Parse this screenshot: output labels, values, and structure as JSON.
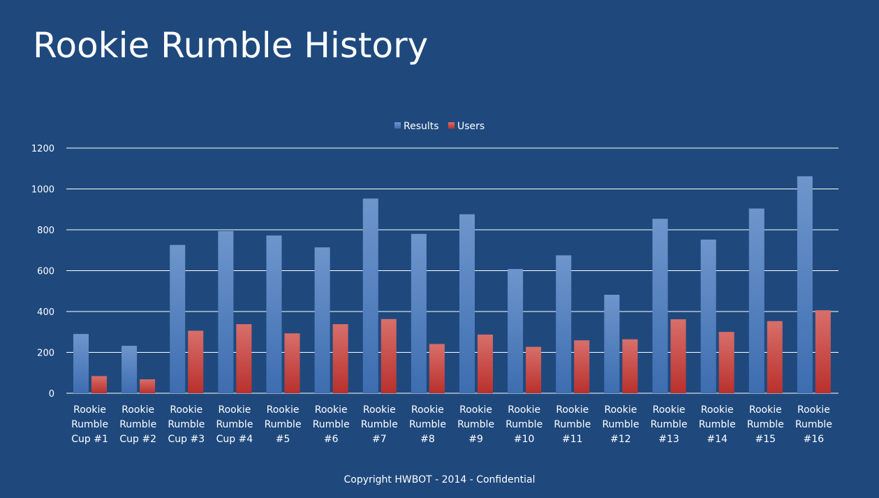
{
  "slide": {
    "title": "Rookie Rumble History",
    "footer": "Copyright HWBOT - 2014 - Confidential"
  },
  "colors": {
    "background": "#1f497d",
    "results": "#4f81bd",
    "users": "#c0504d",
    "gridline": "#ffffff",
    "text": "#ffffff"
  },
  "chart_data": {
    "type": "bar",
    "title": "",
    "xlabel": "",
    "ylabel": "",
    "ylim": [
      0,
      1200
    ],
    "yticks": [
      0,
      200,
      400,
      600,
      800,
      1000,
      1200
    ],
    "grid": true,
    "legend_position": "top",
    "categories": [
      [
        "Rookie",
        "Rumble",
        "Cup #1"
      ],
      [
        "Rookie",
        "Rumble",
        "Cup #2"
      ],
      [
        "Rookie",
        "Rumble",
        "Cup #3"
      ],
      [
        "Rookie",
        "Rumble",
        "Cup #4"
      ],
      [
        "Rookie",
        "Rumble",
        "#5"
      ],
      [
        "Rookie",
        "Rumble",
        "#6"
      ],
      [
        "Rookie",
        "Rumble",
        "#7"
      ],
      [
        "Rookie",
        "Rumble",
        "#8"
      ],
      [
        "Rookie",
        "Rumble",
        "#9"
      ],
      [
        "Rookie",
        "Rumble",
        "#10"
      ],
      [
        "Rookie",
        "Rumble",
        "#11"
      ],
      [
        "Rookie",
        "Rumble",
        "#12"
      ],
      [
        "Rookie",
        "Rumble",
        "#13"
      ],
      [
        "Rookie",
        "Rumble",
        "#14"
      ],
      [
        "Rookie",
        "Rumble",
        "#15"
      ],
      [
        "Rookie",
        "Rumble",
        "#16"
      ]
    ],
    "series": [
      {
        "name": "Results",
        "color": "#4f81bd",
        "values": [
          290,
          232,
          726,
          794,
          772,
          714,
          953,
          780,
          876,
          608,
          675,
          482,
          854,
          752,
          904,
          1062
        ]
      },
      {
        "name": "Users",
        "color": "#c0504d",
        "values": [
          84,
          68,
          306,
          338,
          293,
          338,
          363,
          241,
          287,
          227,
          259,
          264,
          362,
          300,
          353,
          406
        ]
      }
    ]
  }
}
